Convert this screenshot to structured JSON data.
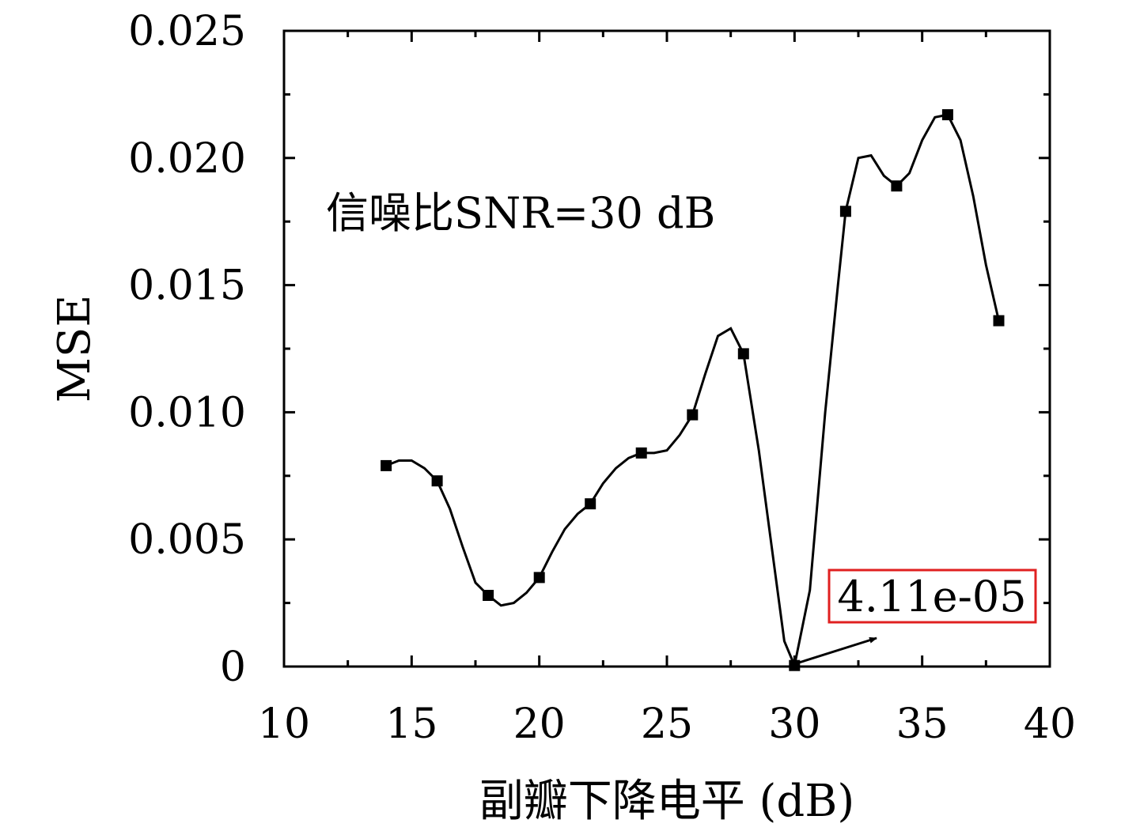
{
  "chart_data": {
    "type": "line",
    "title": "",
    "xlabel": "副瓣下降电平 (dB)",
    "ylabel": "MSE",
    "xlim": [
      10,
      40
    ],
    "ylim": [
      0,
      0.025
    ],
    "x_ticks": [
      10,
      15,
      20,
      25,
      30,
      35,
      40
    ],
    "x_tick_labels": [
      "10",
      "15",
      "20",
      "25",
      "30",
      "35",
      "40"
    ],
    "y_ticks": [
      0,
      0.005,
      0.01,
      0.015,
      0.02,
      0.025
    ],
    "y_tick_labels": [
      "0",
      "0.005",
      "0.010",
      "0.015",
      "0.020",
      "0.025"
    ],
    "grid": false,
    "series": [
      {
        "color": "#000000",
        "marker": "square",
        "markers": {
          "x": [
            14,
            16,
            18,
            20,
            22,
            24,
            26,
            28,
            30,
            32,
            34,
            36,
            38
          ],
          "y": [
            0.0079,
            0.0073,
            0.0028,
            0.0035,
            0.0064,
            0.0084,
            0.0099,
            0.0123,
            4.11e-05,
            0.0179,
            0.0189,
            0.0217,
            0.0136
          ]
        },
        "curve": {
          "x": [
            14,
            14.5,
            15,
            15.5,
            16,
            16.5,
            17,
            17.5,
            18,
            18.5,
            19,
            19.5,
            20,
            20.5,
            21,
            21.5,
            22,
            22.5,
            23,
            23.5,
            24,
            24.5,
            25,
            25.5,
            26,
            26.5,
            27,
            27.5,
            28,
            28.6,
            29.2,
            29.6,
            30,
            30.6,
            31.2,
            31.7,
            32,
            32.5,
            33,
            33.5,
            34,
            34.5,
            35,
            35.5,
            36,
            36.5,
            37,
            37.5,
            38
          ],
          "y": [
            0.0079,
            0.0081,
            0.0081,
            0.0078,
            0.0073,
            0.0062,
            0.0047,
            0.0033,
            0.0028,
            0.0024,
            0.0025,
            0.0029,
            0.0035,
            0.0045,
            0.0054,
            0.006,
            0.0064,
            0.0072,
            0.0078,
            0.0082,
            0.0084,
            0.0084,
            0.0085,
            0.0091,
            0.0099,
            0.0115,
            0.013,
            0.0133,
            0.0123,
            0.0085,
            0.004,
            0.001,
            4.11e-05,
            0.003,
            0.01,
            0.015,
            0.0179,
            0.02,
            0.0201,
            0.0193,
            0.0189,
            0.0194,
            0.0207,
            0.0216,
            0.0217,
            0.0207,
            0.0185,
            0.0158,
            0.0136
          ]
        }
      }
    ],
    "annotations": [
      {
        "text": "信噪比SNR=30 dB"
      },
      {
        "text": "4.11e-05",
        "box_color": "#e02020",
        "points_to": {
          "x": 30,
          "y": 4.11e-05
        }
      }
    ]
  }
}
